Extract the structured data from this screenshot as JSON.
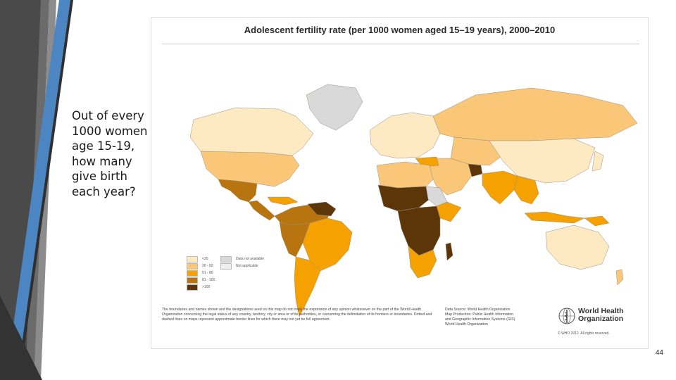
{
  "slide": {
    "question": "Out of every 1000 women age 15-19, how many give birth each year?",
    "slide_number": "44"
  },
  "map": {
    "title": "Adolescent fertility rate (per 1000 women aged 15–19 years), 2000–2010",
    "legend": {
      "categories": [
        {
          "label": "<20",
          "color": "#fde9c2"
        },
        {
          "label": "20 - 50",
          "color": "#f9c777"
        },
        {
          "label": "51 - 80",
          "color": "#f5a100"
        },
        {
          "label": "81 - 100",
          "color": "#b8740f"
        },
        {
          "label": ">100",
          "color": "#5c3608"
        }
      ],
      "special": [
        {
          "label": "Data not available",
          "color": "#d9d9d9"
        },
        {
          "label": "Not applicable",
          "color": "#eeeeee"
        }
      ]
    },
    "colors": {
      "outline": "#9a8f80",
      "ocean": "#ffffff",
      "slide_accent_dark": "#454545",
      "slide_accent_light": "#8a8a8a",
      "slide_accent_blue": "#4c86c2"
    },
    "disclaimer": "The boundaries and names shown and the designations used on this map do not imply the expression of any opinion whatsoever on the part of the World Health Organization concerning the legal status of any country, territory, city or area or of its authorities, or concerning the delimitation of its frontiers or boundaries. Dotted and dashed lines on maps represent approximate border lines for which there may not yet be full agreement.",
    "source": {
      "data_source": "Data Source: World Health Organization",
      "production": "Map Production: Public Health Information",
      "production_cont": "and Geographic Information Systems (GIS)",
      "org": "World Health Organization"
    },
    "who_name_line1": "World Health",
    "who_name_line2": "Organization",
    "copyright": "© WHO 2012. All rights reserved."
  }
}
